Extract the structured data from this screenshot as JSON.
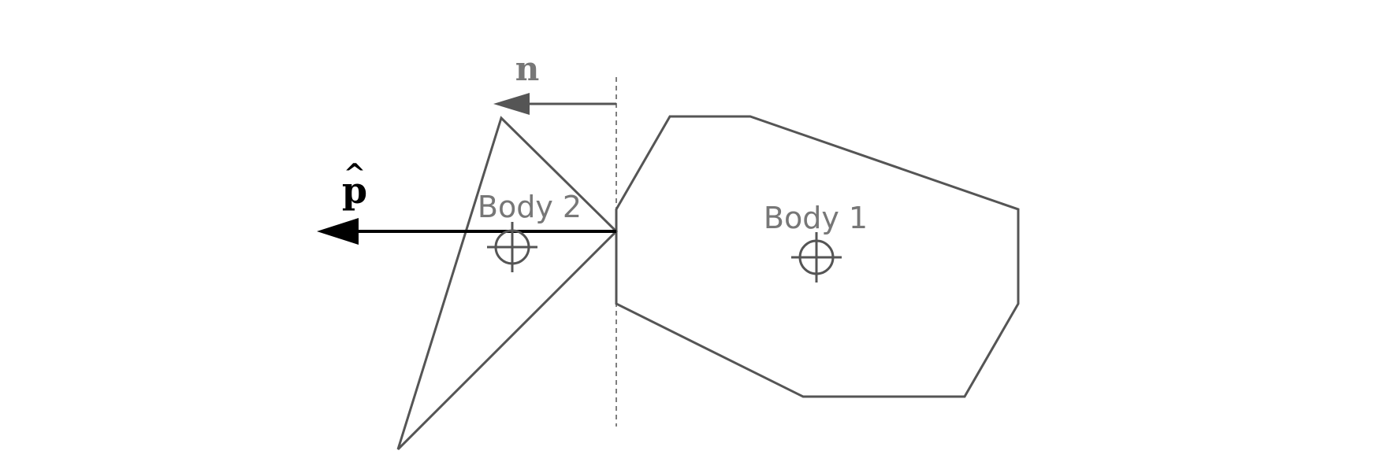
{
  "labels": {
    "body1": "Body 1",
    "body2": "Body 2",
    "normal": "n",
    "impulse": "p",
    "impulse_hat": "^"
  },
  "colors": {
    "outline": "#555555",
    "body_label": "#777777",
    "normal_arrow": "#555555",
    "impulse_arrow": "#000000"
  },
  "icons": {
    "center_of_mass": "crosshair-icon"
  }
}
